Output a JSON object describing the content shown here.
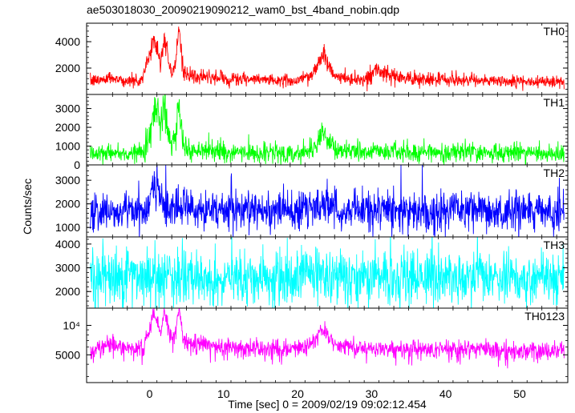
{
  "chart_data": {
    "type": "line",
    "title": "ae503018030_20090219090212_wam0_bst_4band_nobin.qdp",
    "xlabel": "Time [sec] 0 = 2009/02/19 09:02:12.454",
    "ylabel": "Counts/sec",
    "xlim": [
      -8.5,
      56.5
    ],
    "xticks": [
      0,
      10,
      20,
      30,
      40,
      50
    ],
    "xtick_labels": [
      "0",
      "10",
      "20",
      "30",
      "40",
      "50"
    ],
    "panels": [
      {
        "name": "TH0",
        "color": "#ff0000",
        "ylim": [
          0,
          5400
        ],
        "yticks": [
          2000,
          4000
        ],
        "ytick_labels": [
          "2000",
          "4000"
        ],
        "baseline": 1000,
        "noise": 260,
        "x": [
          -8,
          -6,
          -5,
          -4,
          -3,
          -2,
          -1,
          0,
          0.5,
          1,
          1.5,
          2,
          2.5,
          3,
          3.5,
          4,
          4.5,
          5,
          7,
          10,
          15,
          20,
          22,
          23,
          23.5,
          24,
          25,
          27,
          29,
          30,
          30.5,
          32,
          35,
          40,
          45,
          50,
          56
        ],
        "values": [
          1000,
          1150,
          1300,
          1100,
          1050,
          1000,
          1100,
          3000,
          4100,
          3700,
          2300,
          4300,
          3100,
          1400,
          2300,
          5300,
          2000,
          1400,
          1300,
          1200,
          1100,
          1050,
          1500,
          2600,
          3100,
          2400,
          1400,
          1150,
          1100,
          1500,
          1900,
          1400,
          1200,
          1100,
          1050,
          1000,
          950
        ]
      },
      {
        "name": "TH1",
        "color": "#00ff00",
        "ylim": [
          0,
          3750
        ],
        "yticks": [
          0,
          1000,
          2000,
          3000
        ],
        "ytick_labels": [
          "0",
          "1000",
          "2000",
          "3000"
        ],
        "baseline": 620,
        "noise": 280,
        "x": [
          -8,
          -5,
          -3,
          -1,
          0,
          0.5,
          1,
          1.5,
          2,
          2.5,
          3,
          3.5,
          4,
          4.5,
          5,
          7,
          10,
          15,
          20,
          22,
          23,
          23.5,
          24,
          25,
          27,
          30,
          35,
          40,
          45,
          50,
          56
        ],
        "values": [
          620,
          650,
          640,
          700,
          1500,
          2600,
          3200,
          2200,
          3400,
          1700,
          1000,
          1400,
          3000,
          1200,
          800,
          700,
          660,
          640,
          620,
          800,
          1400,
          1800,
          1300,
          800,
          680,
          700,
          650,
          700,
          640,
          620,
          600
        ]
      },
      {
        "name": "TH2",
        "color": "#0000ff",
        "ylim": [
          600,
          3650
        ],
        "yticks": [
          1000,
          2000,
          3000
        ],
        "ytick_labels": [
          "1000",
          "2000",
          "3000"
        ],
        "baseline": 1650,
        "noise": 450,
        "x": [
          -8,
          -3,
          -1,
          0,
          0.5,
          1,
          1.5,
          2,
          3,
          5,
          10,
          20,
          23,
          24,
          25,
          30,
          40,
          50,
          56
        ],
        "values": [
          1650,
          1700,
          1650,
          2100,
          2900,
          2400,
          2200,
          2000,
          1850,
          1750,
          1700,
          1750,
          1900,
          1850,
          1750,
          1700,
          1650,
          1650,
          1600
        ]
      },
      {
        "name": "TH3",
        "color": "#00ffff",
        "ylim": [
          1300,
          4300
        ],
        "yticks": [
          2000,
          3000,
          4000
        ],
        "ytick_labels": [
          "2000",
          "3000",
          "4000"
        ],
        "baseline": 2550,
        "noise": 620,
        "x": [
          -8,
          0,
          1,
          2,
          10,
          23,
          24,
          30,
          40,
          50,
          56
        ],
        "values": [
          2550,
          2600,
          2700,
          2600,
          2550,
          2650,
          2600,
          2550,
          2550,
          2550,
          2550
        ],
        "clip_to_range": true
      },
      {
        "name": "TH0123",
        "color": "#ff00ff",
        "ylim": [
          2600,
          15000
        ],
        "yticks": [
          5000,
          10000
        ],
        "ytick_labels": [
          "5000",
          "10⁴"
        ],
        "scale": "log",
        "baseline": 5600,
        "noise": 700,
        "x": [
          -8,
          -6,
          -5,
          -4,
          -3,
          -1,
          0,
          0.5,
          1,
          1.5,
          2,
          2.5,
          3,
          3.5,
          4,
          4.5,
          5,
          7,
          10,
          15,
          20,
          22,
          23,
          23.5,
          24,
          25,
          27,
          30,
          35,
          40,
          45,
          50,
          56
        ],
        "values": [
          5600,
          6000,
          6600,
          6000,
          5900,
          5700,
          9000,
          12500,
          11500,
          8500,
          13500,
          10500,
          6800,
          8000,
          14500,
          7500,
          6600,
          6300,
          6000,
          5800,
          5700,
          6600,
          8500,
          9500,
          8400,
          6500,
          5900,
          5800,
          5700,
          5700,
          5600,
          5500,
          5400
        ]
      }
    ],
    "grid": false,
    "legend": "none"
  }
}
